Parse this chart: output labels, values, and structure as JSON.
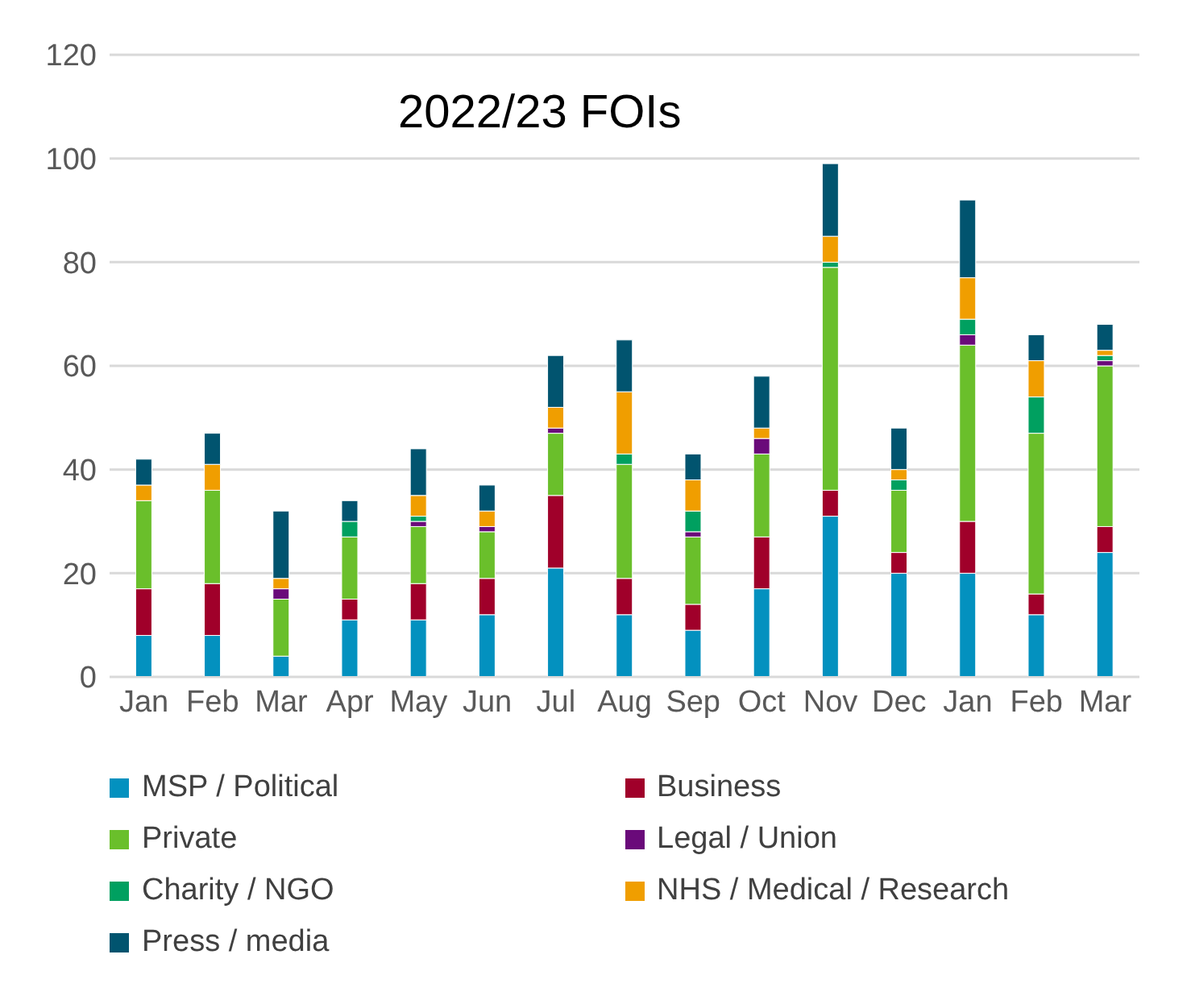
{
  "chart_data": {
    "type": "bar",
    "title": "2022/23 FOIs",
    "stacked": true,
    "categories": [
      "Jan",
      "Feb",
      "Mar",
      "Apr",
      "May",
      "Jun",
      "Jul",
      "Aug",
      "Sep",
      "Oct",
      "Nov",
      "Dec",
      "Jan",
      "Feb",
      "Mar"
    ],
    "series": [
      {
        "name": "MSP / Political",
        "color": "#0391bf",
        "values": [
          8,
          8,
          4,
          11,
          11,
          12,
          21,
          12,
          9,
          17,
          31,
          20,
          20,
          12,
          24
        ]
      },
      {
        "name": "Business",
        "color": "#a0002a",
        "values": [
          9,
          10,
          0,
          4,
          7,
          7,
          14,
          7,
          5,
          10,
          5,
          4,
          10,
          4,
          5
        ]
      },
      {
        "name": "Private",
        "color": "#6abf2b",
        "values": [
          17,
          18,
          11,
          12,
          11,
          9,
          12,
          22,
          13,
          16,
          43,
          12,
          34,
          31,
          31
        ]
      },
      {
        "name": "Legal / Union",
        "color": "#6a0a7a",
        "values": [
          0,
          0,
          2,
          0,
          1,
          1,
          1,
          0,
          1,
          3,
          0,
          0,
          2,
          0,
          1
        ]
      },
      {
        "name": "Charity / NGO",
        "color": "#00a060",
        "values": [
          0,
          0,
          0,
          3,
          1,
          0,
          0,
          2,
          4,
          0,
          1,
          2,
          3,
          7,
          1
        ]
      },
      {
        "name": "NHS / Medical / Research",
        "color": "#f09e00",
        "values": [
          3,
          5,
          2,
          0,
          4,
          3,
          4,
          12,
          6,
          2,
          5,
          2,
          8,
          7,
          1
        ]
      },
      {
        "name": "Press / media",
        "color": "#01546f",
        "values": [
          5,
          6,
          13,
          4,
          9,
          5,
          10,
          10,
          5,
          10,
          14,
          8,
          15,
          5,
          5
        ]
      }
    ],
    "ylim": [
      0,
      120
    ],
    "yticks": [
      0,
      20,
      40,
      60,
      80,
      100,
      120
    ],
    "grid": "y",
    "legend": "bottom"
  }
}
